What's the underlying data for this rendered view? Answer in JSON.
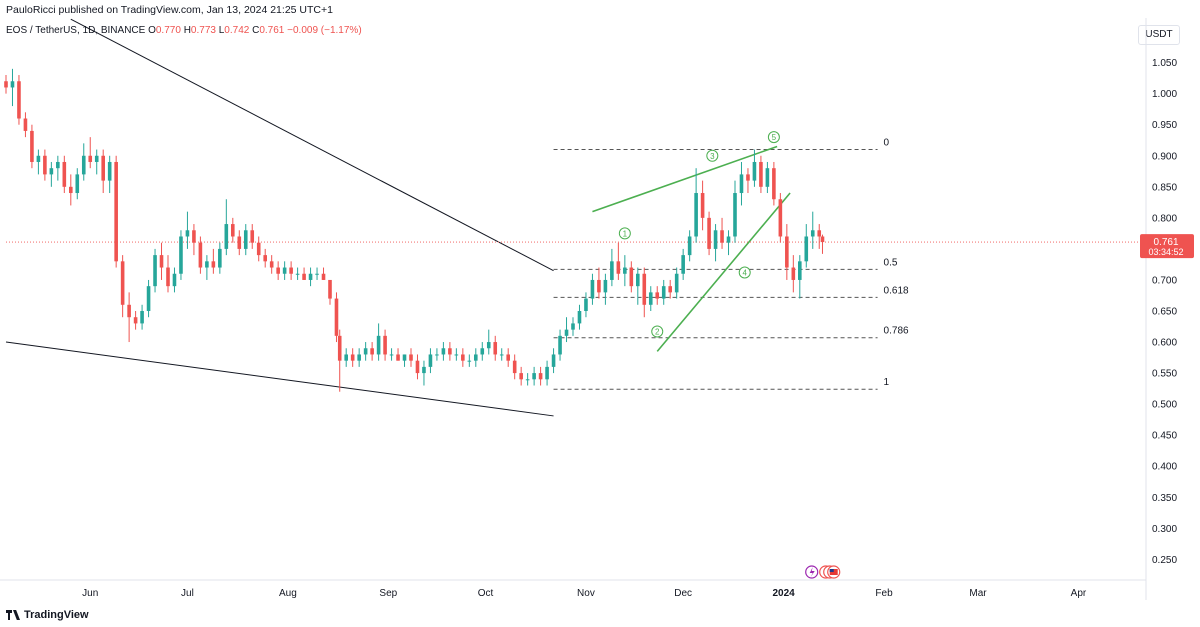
{
  "header": {
    "published": "PauloRicci published on TradingView.com, Jan 13, 2024 21:25 UTC+1"
  },
  "symbol": {
    "name": "EOS / TetherUS, 1D, BINANCE",
    "o_label": "O",
    "o": "0.770",
    "h_label": "H",
    "h": "0.773",
    "l_label": "L",
    "l": "0.742",
    "c_label": "C",
    "c": "0.761",
    "change": "−0.009 (−1.17%)"
  },
  "currency": "USDT",
  "brand": "TradingView",
  "price_label": {
    "price": "0.761",
    "countdown": "03:34:52"
  },
  "colors": {
    "up": "#26a69a",
    "down": "#ef5350",
    "wedge": "#4caf50",
    "trend": "#131722"
  },
  "chart_data": {
    "type": "candlestick",
    "y_axis_ticks": [
      "1.050",
      "1.000",
      "0.950",
      "0.900",
      "0.850",
      "0.800",
      "0.750",
      "0.700",
      "0.650",
      "0.600",
      "0.550",
      "0.500",
      "0.450",
      "0.400",
      "0.350",
      "0.300",
      "0.250"
    ],
    "ylim": [
      0.22,
      1.08
    ],
    "x_axis_ticks": [
      "Jun",
      "Jul",
      "Aug",
      "Sep",
      "Oct",
      "Nov",
      "Dec",
      "2024",
      "Feb",
      "Mar",
      "Apr"
    ],
    "xlim": [
      "2023-05-06",
      "2024-04-20"
    ],
    "last_price": 0.761,
    "fib_levels": [
      {
        "label": "0",
        "price": 0.91
      },
      {
        "label": "0.5",
        "price": 0.717
      },
      {
        "label": "0.618",
        "price": 0.672
      },
      {
        "label": "0.786",
        "price": 0.607
      },
      {
        "label": "1",
        "price": 0.524
      }
    ],
    "wave_labels": [
      {
        "label": "1",
        "date": "2023-11-13",
        "price": 0.775
      },
      {
        "label": "2",
        "date": "2023-11-23",
        "price": 0.617
      },
      {
        "label": "3",
        "date": "2023-12-10",
        "price": 0.9
      },
      {
        "label": "4",
        "date": "2023-12-20",
        "price": 0.712
      },
      {
        "label": "5",
        "date": "2023-12-29",
        "price": 0.93
      }
    ],
    "series": [
      {
        "name": "EOS/USDT",
        "candles": [
          [
            "2023-05-06",
            1.02,
            1.03,
            1.0,
            1.01
          ],
          [
            "2023-05-08",
            1.01,
            1.04,
            0.98,
            1.02
          ],
          [
            "2023-05-10",
            1.02,
            1.03,
            0.95,
            0.96
          ],
          [
            "2023-05-12",
            0.96,
            0.97,
            0.93,
            0.94
          ],
          [
            "2023-05-14",
            0.94,
            0.95,
            0.88,
            0.89
          ],
          [
            "2023-05-16",
            0.89,
            0.91,
            0.87,
            0.9
          ],
          [
            "2023-05-18",
            0.9,
            0.91,
            0.86,
            0.87
          ],
          [
            "2023-05-20",
            0.87,
            0.89,
            0.85,
            0.88
          ],
          [
            "2023-05-22",
            0.88,
            0.9,
            0.86,
            0.89
          ],
          [
            "2023-05-24",
            0.89,
            0.9,
            0.84,
            0.85
          ],
          [
            "2023-05-26",
            0.85,
            0.87,
            0.82,
            0.84
          ],
          [
            "2023-05-28",
            0.84,
            0.88,
            0.83,
            0.87
          ],
          [
            "2023-05-30",
            0.87,
            0.92,
            0.86,
            0.9
          ],
          [
            "2023-06-01",
            0.9,
            0.93,
            0.88,
            0.89
          ],
          [
            "2023-06-03",
            0.89,
            0.91,
            0.87,
            0.9
          ],
          [
            "2023-06-05",
            0.9,
            0.91,
            0.84,
            0.86
          ],
          [
            "2023-06-07",
            0.86,
            0.9,
            0.84,
            0.89
          ],
          [
            "2023-06-09",
            0.89,
            0.9,
            0.72,
            0.73
          ],
          [
            "2023-06-11",
            0.73,
            0.74,
            0.64,
            0.66
          ],
          [
            "2023-06-13",
            0.66,
            0.68,
            0.6,
            0.64
          ],
          [
            "2023-06-15",
            0.64,
            0.65,
            0.62,
            0.63
          ],
          [
            "2023-06-17",
            0.63,
            0.66,
            0.62,
            0.65
          ],
          [
            "2023-06-19",
            0.65,
            0.7,
            0.64,
            0.69
          ],
          [
            "2023-06-21",
            0.69,
            0.75,
            0.68,
            0.74
          ],
          [
            "2023-06-23",
            0.74,
            0.76,
            0.7,
            0.72
          ],
          [
            "2023-06-25",
            0.72,
            0.74,
            0.68,
            0.69
          ],
          [
            "2023-06-27",
            0.69,
            0.72,
            0.68,
            0.71
          ],
          [
            "2023-06-29",
            0.71,
            0.78,
            0.7,
            0.77
          ],
          [
            "2023-07-01",
            0.77,
            0.81,
            0.75,
            0.78
          ],
          [
            "2023-07-03",
            0.78,
            0.79,
            0.74,
            0.76
          ],
          [
            "2023-07-05",
            0.76,
            0.77,
            0.71,
            0.72
          ],
          [
            "2023-07-07",
            0.72,
            0.74,
            0.7,
            0.73
          ],
          [
            "2023-07-09",
            0.73,
            0.75,
            0.71,
            0.72
          ],
          [
            "2023-07-11",
            0.72,
            0.76,
            0.71,
            0.75
          ],
          [
            "2023-07-13",
            0.75,
            0.83,
            0.74,
            0.79
          ],
          [
            "2023-07-15",
            0.79,
            0.8,
            0.76,
            0.77
          ],
          [
            "2023-07-17",
            0.77,
            0.78,
            0.74,
            0.75
          ],
          [
            "2023-07-19",
            0.75,
            0.79,
            0.74,
            0.78
          ],
          [
            "2023-07-21",
            0.78,
            0.79,
            0.75,
            0.76
          ],
          [
            "2023-07-23",
            0.76,
            0.77,
            0.73,
            0.74
          ],
          [
            "2023-07-25",
            0.74,
            0.75,
            0.72,
            0.73
          ],
          [
            "2023-07-27",
            0.73,
            0.74,
            0.71,
            0.72
          ],
          [
            "2023-07-29",
            0.72,
            0.73,
            0.7,
            0.71
          ],
          [
            "2023-07-31",
            0.71,
            0.73,
            0.7,
            0.72
          ],
          [
            "2023-08-02",
            0.72,
            0.73,
            0.7,
            0.71
          ],
          [
            "2023-08-04",
            0.71,
            0.72,
            0.7,
            0.71
          ],
          [
            "2023-08-06",
            0.71,
            0.72,
            0.7,
            0.7
          ],
          [
            "2023-08-08",
            0.7,
            0.72,
            0.69,
            0.71
          ],
          [
            "2023-08-10",
            0.71,
            0.72,
            0.7,
            0.71
          ],
          [
            "2023-08-12",
            0.71,
            0.72,
            0.7,
            0.7
          ],
          [
            "2023-08-14",
            0.7,
            0.7,
            0.66,
            0.67
          ],
          [
            "2023-08-16",
            0.67,
            0.68,
            0.6,
            0.61
          ],
          [
            "2023-08-17",
            0.61,
            0.62,
            0.52,
            0.57
          ],
          [
            "2023-08-19",
            0.57,
            0.59,
            0.56,
            0.58
          ],
          [
            "2023-08-21",
            0.58,
            0.59,
            0.56,
            0.57
          ],
          [
            "2023-08-23",
            0.57,
            0.59,
            0.56,
            0.58
          ],
          [
            "2023-08-25",
            0.58,
            0.6,
            0.57,
            0.59
          ],
          [
            "2023-08-27",
            0.59,
            0.6,
            0.57,
            0.58
          ],
          [
            "2023-08-29",
            0.58,
            0.63,
            0.57,
            0.61
          ],
          [
            "2023-08-31",
            0.61,
            0.62,
            0.57,
            0.58
          ],
          [
            "2023-09-02",
            0.58,
            0.59,
            0.57,
            0.58
          ],
          [
            "2023-09-04",
            0.58,
            0.59,
            0.57,
            0.57
          ],
          [
            "2023-09-06",
            0.57,
            0.58,
            0.56,
            0.58
          ],
          [
            "2023-09-08",
            0.58,
            0.59,
            0.56,
            0.57
          ],
          [
            "2023-09-10",
            0.57,
            0.58,
            0.54,
            0.55
          ],
          [
            "2023-09-12",
            0.55,
            0.57,
            0.53,
            0.56
          ],
          [
            "2023-09-14",
            0.56,
            0.59,
            0.55,
            0.58
          ],
          [
            "2023-09-16",
            0.58,
            0.59,
            0.57,
            0.58
          ],
          [
            "2023-09-18",
            0.58,
            0.6,
            0.57,
            0.59
          ],
          [
            "2023-09-20",
            0.59,
            0.6,
            0.57,
            0.58
          ],
          [
            "2023-09-22",
            0.58,
            0.59,
            0.57,
            0.58
          ],
          [
            "2023-09-24",
            0.58,
            0.59,
            0.56,
            0.57
          ],
          [
            "2023-09-26",
            0.57,
            0.58,
            0.56,
            0.57
          ],
          [
            "2023-09-28",
            0.57,
            0.59,
            0.56,
            0.58
          ],
          [
            "2023-09-30",
            0.58,
            0.6,
            0.57,
            0.59
          ],
          [
            "2023-10-02",
            0.59,
            0.62,
            0.58,
            0.6
          ],
          [
            "2023-10-04",
            0.6,
            0.61,
            0.57,
            0.58
          ],
          [
            "2023-10-06",
            0.58,
            0.59,
            0.57,
            0.58
          ],
          [
            "2023-10-08",
            0.58,
            0.59,
            0.56,
            0.57
          ],
          [
            "2023-10-10",
            0.57,
            0.58,
            0.54,
            0.55
          ],
          [
            "2023-10-12",
            0.55,
            0.56,
            0.53,
            0.54
          ],
          [
            "2023-10-14",
            0.54,
            0.55,
            0.53,
            0.54
          ],
          [
            "2023-10-16",
            0.54,
            0.56,
            0.53,
            0.55
          ],
          [
            "2023-10-18",
            0.55,
            0.56,
            0.53,
            0.54
          ],
          [
            "2023-10-20",
            0.54,
            0.57,
            0.53,
            0.56
          ],
          [
            "2023-10-22",
            0.56,
            0.59,
            0.55,
            0.58
          ],
          [
            "2023-10-24",
            0.58,
            0.62,
            0.57,
            0.61
          ],
          [
            "2023-10-26",
            0.61,
            0.64,
            0.6,
            0.62
          ],
          [
            "2023-10-28",
            0.62,
            0.64,
            0.61,
            0.63
          ],
          [
            "2023-10-30",
            0.63,
            0.66,
            0.62,
            0.65
          ],
          [
            "2023-11-01",
            0.65,
            0.68,
            0.64,
            0.67
          ],
          [
            "2023-11-03",
            0.67,
            0.71,
            0.66,
            0.7
          ],
          [
            "2023-11-05",
            0.7,
            0.72,
            0.67,
            0.68
          ],
          [
            "2023-11-07",
            0.68,
            0.71,
            0.66,
            0.7
          ],
          [
            "2023-11-09",
            0.7,
            0.75,
            0.69,
            0.73
          ],
          [
            "2023-11-11",
            0.73,
            0.76,
            0.7,
            0.71
          ],
          [
            "2023-11-13",
            0.71,
            0.74,
            0.69,
            0.72
          ],
          [
            "2023-11-15",
            0.72,
            0.73,
            0.68,
            0.69
          ],
          [
            "2023-11-17",
            0.69,
            0.72,
            0.66,
            0.71
          ],
          [
            "2023-11-19",
            0.71,
            0.72,
            0.64,
            0.66
          ],
          [
            "2023-11-21",
            0.66,
            0.69,
            0.65,
            0.68
          ],
          [
            "2023-11-23",
            0.68,
            0.69,
            0.66,
            0.67
          ],
          [
            "2023-11-25",
            0.67,
            0.7,
            0.66,
            0.69
          ],
          [
            "2023-11-27",
            0.69,
            0.7,
            0.67,
            0.68
          ],
          [
            "2023-11-29",
            0.68,
            0.72,
            0.67,
            0.71
          ],
          [
            "2023-12-01",
            0.71,
            0.75,
            0.7,
            0.74
          ],
          [
            "2023-12-03",
            0.74,
            0.78,
            0.73,
            0.77
          ],
          [
            "2023-12-05",
            0.77,
            0.88,
            0.76,
            0.84
          ],
          [
            "2023-12-07",
            0.84,
            0.86,
            0.78,
            0.8
          ],
          [
            "2023-12-09",
            0.8,
            0.81,
            0.74,
            0.75
          ],
          [
            "2023-12-11",
            0.75,
            0.79,
            0.73,
            0.78
          ],
          [
            "2023-12-13",
            0.78,
            0.8,
            0.75,
            0.76
          ],
          [
            "2023-12-15",
            0.76,
            0.78,
            0.74,
            0.77
          ],
          [
            "2023-12-17",
            0.77,
            0.86,
            0.76,
            0.84
          ],
          [
            "2023-12-19",
            0.84,
            0.89,
            0.82,
            0.87
          ],
          [
            "2023-12-21",
            0.87,
            0.88,
            0.84,
            0.86
          ],
          [
            "2023-12-23",
            0.86,
            0.91,
            0.85,
            0.89
          ],
          [
            "2023-12-25",
            0.89,
            0.9,
            0.84,
            0.85
          ],
          [
            "2023-12-27",
            0.85,
            0.89,
            0.84,
            0.88
          ],
          [
            "2023-12-29",
            0.88,
            0.89,
            0.82,
            0.83
          ],
          [
            "2023-12-31",
            0.83,
            0.84,
            0.76,
            0.77
          ],
          [
            "2024-01-02",
            0.77,
            0.79,
            0.7,
            0.72
          ],
          [
            "2024-01-04",
            0.72,
            0.74,
            0.68,
            0.7
          ],
          [
            "2024-01-06",
            0.7,
            0.74,
            0.67,
            0.73
          ],
          [
            "2024-01-08",
            0.73,
            0.79,
            0.72,
            0.77
          ],
          [
            "2024-01-10",
            0.77,
            0.81,
            0.75,
            0.78
          ],
          [
            "2024-01-12",
            0.78,
            0.79,
            0.75,
            0.77
          ],
          [
            "2024-01-13",
            0.77,
            0.773,
            0.742,
            0.761
          ]
        ]
      }
    ],
    "trendlines": [
      {
        "from": [
          "2023-05-26",
          1.12
        ],
        "to": [
          "2023-10-22",
          0.715
        ]
      },
      {
        "from": [
          "2023-05-06",
          0.6
        ],
        "to": [
          "2023-10-22",
          0.481
        ]
      }
    ],
    "wedge_lines": [
      {
        "from": [
          "2023-11-03",
          0.81
        ],
        "to": [
          "2023-12-30",
          0.915
        ]
      },
      {
        "from": [
          "2023-11-23",
          0.585
        ],
        "to": [
          "2024-01-03",
          0.84
        ]
      }
    ]
  }
}
